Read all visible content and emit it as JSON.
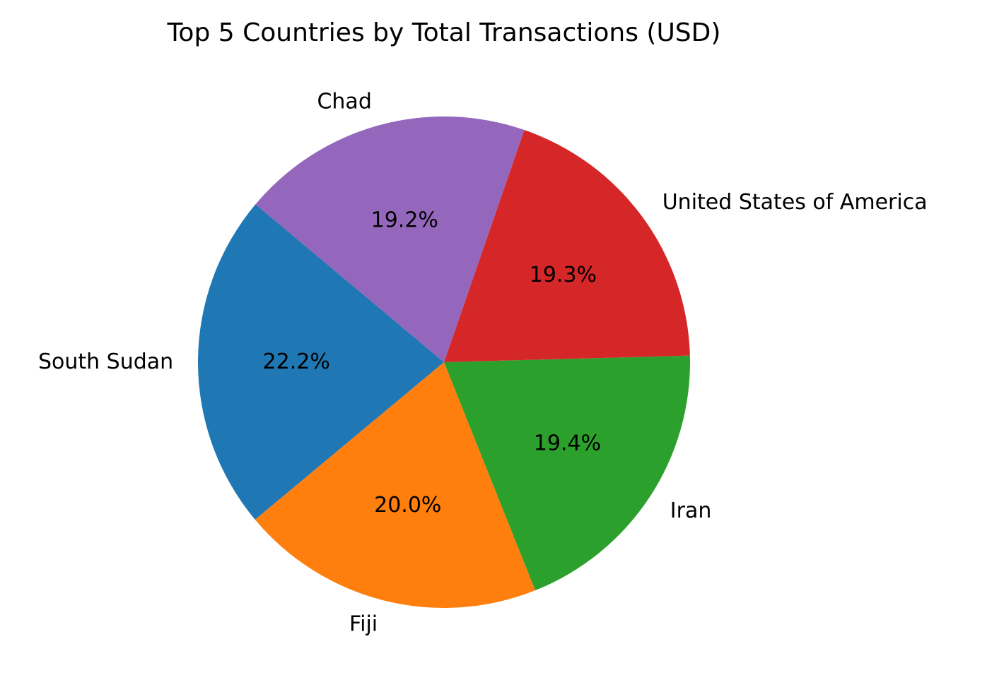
{
  "chart_data": {
    "type": "pie",
    "title": "Top 5 Countries by Total Transactions (USD)",
    "labels": [
      "South Sudan",
      "Fiji",
      "Iran",
      "United States of America",
      "Chad"
    ],
    "values": [
      22.2,
      20.0,
      19.4,
      19.3,
      19.2
    ],
    "percent_labels": [
      "22.2%",
      "20.0%",
      "19.4%",
      "19.3%",
      "19.2%"
    ],
    "colors": [
      "#1f77b4",
      "#ff7f0e",
      "#2ca02c",
      "#d62728",
      "#9467bd"
    ],
    "start_angle_deg": 140,
    "direction": "counterclockwise",
    "legend": "none"
  }
}
